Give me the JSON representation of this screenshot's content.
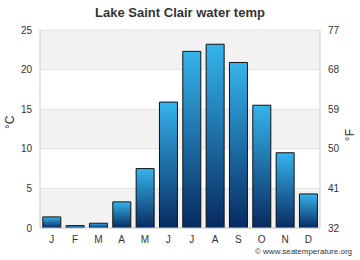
{
  "chart_data": {
    "type": "bar",
    "title": "Lake Saint Clair water temp",
    "categories": [
      "J",
      "F",
      "M",
      "A",
      "M",
      "J",
      "J",
      "A",
      "S",
      "O",
      "N",
      "D"
    ],
    "values": [
      1.4,
      0.3,
      0.6,
      3.3,
      7.5,
      15.9,
      22.3,
      23.2,
      20.9,
      15.5,
      9.5,
      4.3
    ],
    "color": "#36b4ec",
    "ylabel": "°C",
    "ylim": [
      0,
      25
    ],
    "yticks": [
      0,
      5,
      10,
      15,
      20,
      25
    ],
    "y2label": "°F",
    "y2lim": [
      32,
      77
    ],
    "y2ticks": [
      32,
      41,
      50,
      59,
      68,
      77
    ],
    "grid": true,
    "annotations": [
      "© www.seatemperature.org"
    ]
  }
}
